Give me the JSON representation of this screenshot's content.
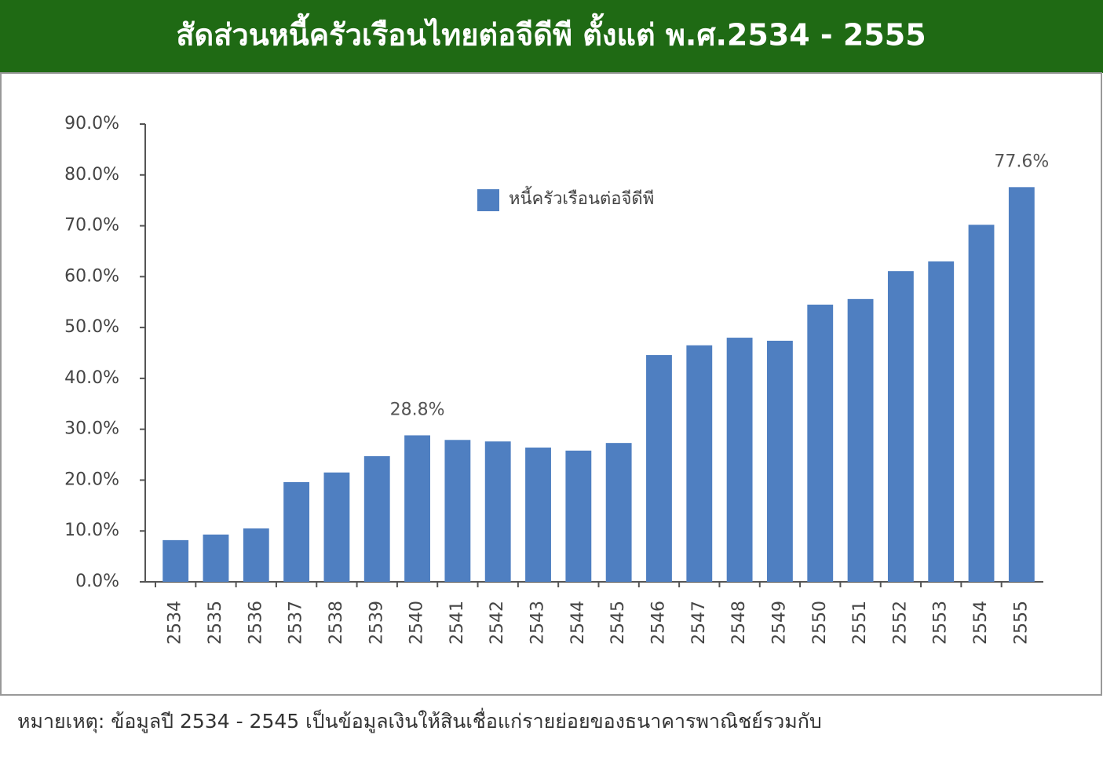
{
  "chart_data": {
    "type": "bar",
    "title": "สัดส่วนหนี้ครัวเรือนไทยต่อจีดีพี ตั้งแต่ พ.ศ.2534 - 2555",
    "categories": [
      "2534",
      "2535",
      "2536",
      "2537",
      "2538",
      "2539",
      "2540",
      "2541",
      "2542",
      "2543",
      "2544",
      "2545",
      "2546",
      "2547",
      "2548",
      "2549",
      "2550",
      "2551",
      "2552",
      "2553",
      "2554",
      "2555"
    ],
    "series": [
      {
        "name": "หนี้ครัวเรือนต่อจีดีพี",
        "color": "#4f7fc1",
        "values": [
          8.2,
          9.3,
          10.5,
          19.6,
          21.5,
          24.7,
          28.8,
          27.9,
          27.6,
          26.4,
          25.8,
          27.3,
          44.6,
          46.5,
          48.0,
          47.4,
          54.5,
          55.6,
          61.1,
          63.0,
          70.2,
          77.6
        ],
        "value_labels": [
          null,
          null,
          null,
          null,
          null,
          null,
          "28.8%",
          null,
          null,
          null,
          null,
          null,
          null,
          null,
          null,
          null,
          null,
          null,
          null,
          null,
          null,
          "77.6%"
        ]
      }
    ],
    "ylim": [
      0,
      90
    ],
    "yticks": [
      {
        "value": 0,
        "label": "0.0%"
      },
      {
        "value": 10,
        "label": "10.0%"
      },
      {
        "value": 20,
        "label": "20.0%"
      },
      {
        "value": 30,
        "label": "30.0%"
      },
      {
        "value": 40,
        "label": "40.0%"
      },
      {
        "value": 50,
        "label": "50.0%"
      },
      {
        "value": 60,
        "label": "60.0%"
      },
      {
        "value": 70,
        "label": "70.0%"
      },
      {
        "value": 80,
        "label": "80.0%"
      },
      {
        "value": 90,
        "label": "90.0%"
      }
    ],
    "grid": false,
    "legend_position": "top-center",
    "note": "หมายเหตุ: ข้อมูลปี 2534 - 2545 เป็นข้อมูลเงินให้สินเชื่อแก่รายย่อยของธนาคารพาณิชย์รวมกับ"
  }
}
